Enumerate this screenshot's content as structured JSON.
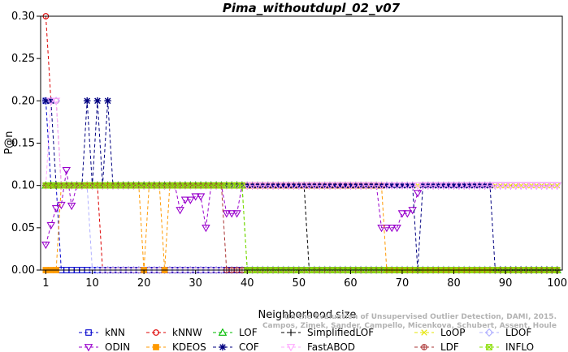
{
  "chart_data": {
    "type": "line",
    "title": "Pima_withoutdupl_02_v07",
    "xlabel": "Neighborhood size",
    "ylabel": "P@n",
    "xlim": [
      0,
      101
    ],
    "ylim": [
      0,
      0.3
    ],
    "xticks": [
      1,
      10,
      20,
      30,
      40,
      50,
      60,
      70,
      80,
      90,
      100
    ],
    "yticks": [
      "0.00",
      "0.05",
      "0.10",
      "0.15",
      "0.20",
      "0.25",
      "0.30"
    ],
    "legend_position": "bottom",
    "series": [
      {
        "name": "kNN",
        "color": "#0000cc",
        "marker": "square",
        "points": [
          [
            1,
            0.2
          ],
          [
            2,
            0.1
          ],
          [
            3,
            0.1
          ],
          [
            4,
            0.0
          ],
          [
            100,
            0.0
          ]
        ]
      },
      {
        "name": "kNNW",
        "color": "#dd0000",
        "marker": "circle",
        "points": [
          [
            1,
            0.3
          ],
          [
            2,
            0.2
          ],
          [
            3,
            0.2
          ],
          [
            4,
            0.1
          ],
          [
            11,
            0.1
          ],
          [
            12,
            0.0
          ],
          [
            100,
            0.0
          ]
        ]
      },
      {
        "name": "LOF",
        "color": "#00bb00",
        "marker": "triangle",
        "points": [
          [
            1,
            0.1
          ],
          [
            39,
            0.1
          ],
          [
            40,
            0.0
          ],
          [
            100,
            0.0
          ]
        ]
      },
      {
        "name": "SimplifiedLOF",
        "color": "#000000",
        "marker": "plus",
        "points": [
          [
            1,
            0.1
          ],
          [
            51,
            0.1
          ],
          [
            52,
            0.0
          ],
          [
            100,
            0.0
          ]
        ]
      },
      {
        "name": "LoOP",
        "color": "#e6e600",
        "marker": "x",
        "points": [
          [
            1,
            0.1
          ],
          [
            100,
            0.1
          ]
        ]
      },
      {
        "name": "LDOF",
        "color": "#b0b0ff",
        "marker": "diamond",
        "points": [
          [
            1,
            0.2
          ],
          [
            2,
            0.2
          ],
          [
            3,
            0.2
          ],
          [
            4,
            0.1
          ],
          [
            9,
            0.1
          ],
          [
            10,
            0.0
          ],
          [
            100,
            0.0
          ]
        ]
      },
      {
        "name": "ODIN",
        "color": "#9900cc",
        "marker": "triangle-down",
        "points": [
          [
            1,
            0.03
          ],
          [
            2,
            0.053
          ],
          [
            3,
            0.073
          ],
          [
            4,
            0.077
          ],
          [
            5,
            0.118
          ],
          [
            6,
            0.076
          ],
          [
            7,
            0.1
          ],
          [
            26,
            0.1
          ],
          [
            27,
            0.071
          ],
          [
            28,
            0.083
          ],
          [
            29,
            0.083
          ],
          [
            30,
            0.087
          ],
          [
            31,
            0.087
          ],
          [
            32,
            0.05
          ],
          [
            33,
            0.1
          ],
          [
            35,
            0.1
          ],
          [
            36,
            0.067
          ],
          [
            37,
            0.067
          ],
          [
            38,
            0.067
          ],
          [
            39,
            0.1
          ],
          [
            65,
            0.1
          ],
          [
            66,
            0.05
          ],
          [
            67,
            0.05
          ],
          [
            68,
            0.05
          ],
          [
            69,
            0.05
          ],
          [
            70,
            0.067
          ],
          [
            71,
            0.067
          ],
          [
            72,
            0.071
          ],
          [
            73,
            0.091
          ],
          [
            74,
            0.1
          ],
          [
            100,
            0.1
          ]
        ]
      },
      {
        "name": "KDEOS",
        "color": "#ff9900",
        "marker": "square-filled",
        "points": [
          [
            1,
            0.0
          ],
          [
            3,
            0.0
          ],
          [
            4,
            0.1
          ],
          [
            19,
            0.1
          ],
          [
            20,
            0.0
          ],
          [
            21,
            0.1
          ],
          [
            23,
            0.1
          ],
          [
            24,
            0.0
          ],
          [
            25,
            0.1
          ],
          [
            66,
            0.1
          ],
          [
            67,
            0.0
          ],
          [
            100,
            0.0
          ]
        ]
      },
      {
        "name": "COF",
        "color": "#000080",
        "marker": "star",
        "points": [
          [
            1,
            0.2
          ],
          [
            2,
            0.2
          ],
          [
            3,
            0.1
          ],
          [
            8,
            0.1
          ],
          [
            9,
            0.2
          ],
          [
            10,
            0.1
          ],
          [
            11,
            0.2
          ],
          [
            12,
            0.1
          ],
          [
            13,
            0.2
          ],
          [
            14,
            0.1
          ],
          [
            72,
            0.1
          ],
          [
            73,
            0.0
          ],
          [
            74,
            0.1
          ],
          [
            87,
            0.1
          ],
          [
            88,
            0.0
          ],
          [
            100,
            0.0
          ]
        ]
      },
      {
        "name": "FastABOD",
        "color": "#ffaaff",
        "marker": "triangle-down",
        "points": [
          [
            1,
            0.1
          ],
          [
            2,
            0.2
          ],
          [
            3,
            0.2
          ],
          [
            4,
            0.1
          ],
          [
            100,
            0.1
          ]
        ]
      },
      {
        "name": "LDF",
        "color": "#aa3333",
        "marker": "circle-plus",
        "points": [
          [
            1,
            0.1
          ],
          [
            35,
            0.1
          ],
          [
            36,
            0.0
          ],
          [
            100,
            0.0
          ]
        ]
      },
      {
        "name": "INFLO",
        "color": "#88dd00",
        "marker": "square-x",
        "points": [
          [
            1,
            0.1
          ],
          [
            39,
            0.1
          ],
          [
            40,
            0.0
          ],
          [
            100,
            0.0
          ]
        ]
      }
    ],
    "attribution": [
      "Campos, Zimek, Sander, Campello, Micenkova, Schubert, Assent, Houle",
      "On the Evaluation of Unsupervised Outlier Detection, DAMI, 2015."
    ]
  }
}
